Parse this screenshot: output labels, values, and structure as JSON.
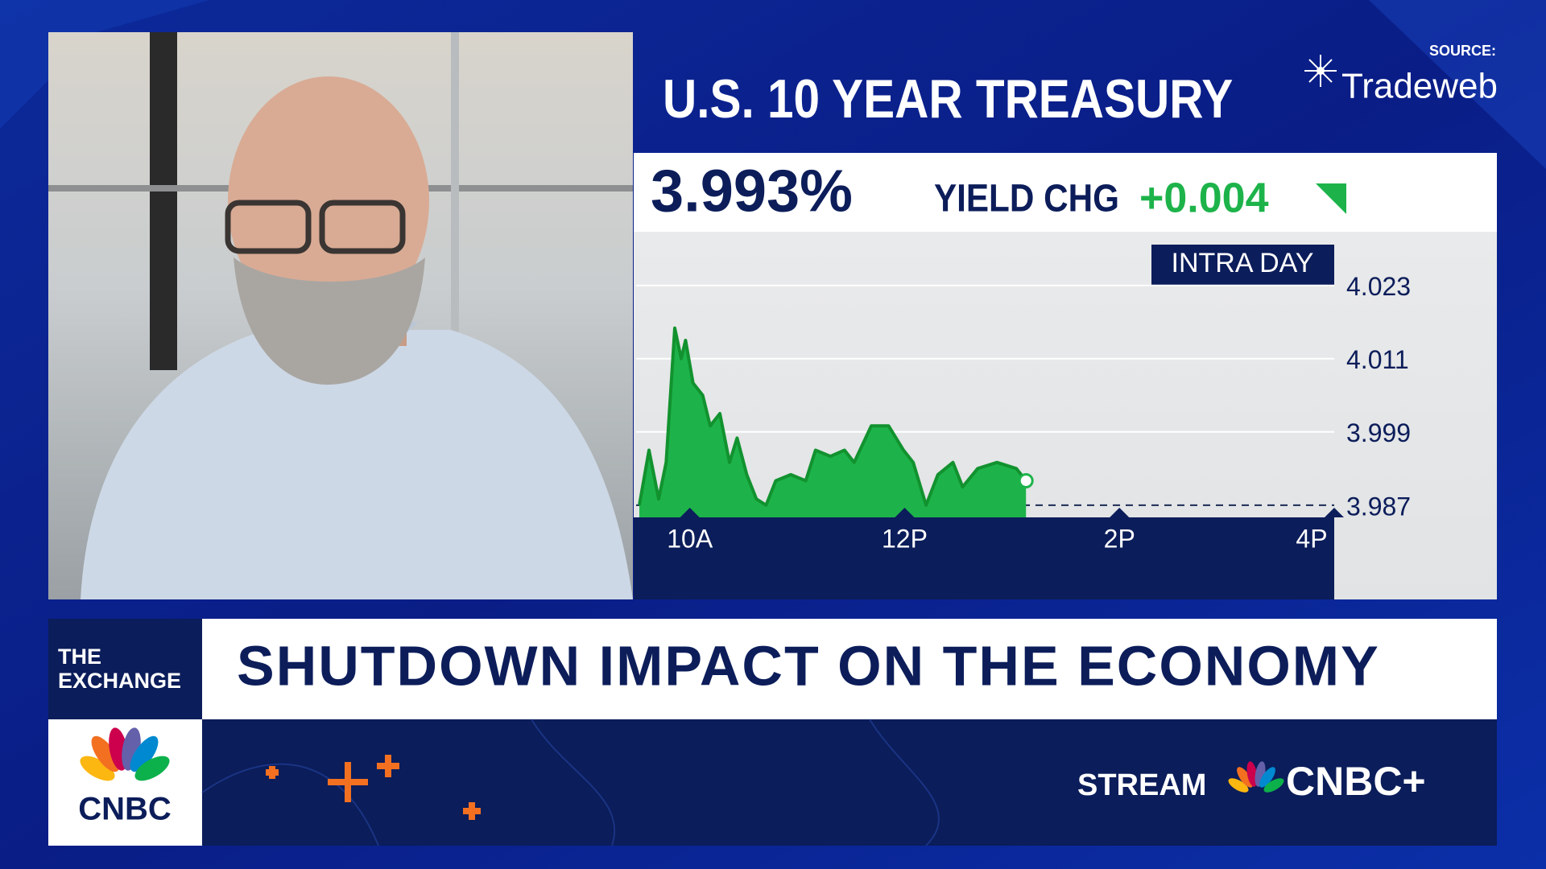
{
  "header": {
    "source_label": "SOURCE:",
    "source_name": "Tradeweb"
  },
  "chart_data": {
    "type": "area",
    "title": "U.S. 10 YEAR TREASURY",
    "current_yield": "3.993%",
    "change_label": "YIELD CHG",
    "change": "+0.004",
    "range_label": "INTRA DAY",
    "color": "#1db34a",
    "line_color": "#12922f",
    "x": [
      9.53,
      9.62,
      9.71,
      9.78,
      9.86,
      9.92,
      9.96,
      10.03,
      10.12,
      10.19,
      10.28,
      10.37,
      10.44,
      10.53,
      10.62,
      10.71,
      10.8,
      10.94,
      11.08,
      11.17,
      11.31,
      11.44,
      11.53,
      11.69,
      11.85,
      11.99,
      12.08,
      12.2,
      12.31,
      12.45,
      12.54,
      12.68,
      12.86,
      13.04,
      13.13
    ],
    "values": [
      3.987,
      3.996,
      3.988,
      3.994,
      4.016,
      4.011,
      4.014,
      4.007,
      4.005,
      4.0,
      4.002,
      3.994,
      3.998,
      3.992,
      3.988,
      3.987,
      3.991,
      3.992,
      3.991,
      3.996,
      3.995,
      3.996,
      3.994,
      4.0,
      4.0,
      3.996,
      3.994,
      3.987,
      3.992,
      3.994,
      3.99,
      3.993,
      3.994,
      3.993,
      3.991
    ],
    "xlim": [
      9.5,
      16
    ],
    "ylim": [
      3.985,
      4.031
    ],
    "xticks": [
      {
        "value": 10,
        "label": "10A"
      },
      {
        "value": 12,
        "label": "12P"
      },
      {
        "value": 14,
        "label": "2P"
      },
      {
        "value": 16,
        "label": "4P"
      }
    ],
    "yticks": [
      3.987,
      3.999,
      4.011,
      4.023
    ],
    "grid": true
  },
  "lower_third": {
    "show": [
      "THE",
      "EXCHANGE"
    ],
    "headline": "SHUTDOWN IMPACT ON THE ECONOMY",
    "network": "CNBC",
    "promo_label": "STREAM",
    "promo_brand": "CNBC+"
  }
}
